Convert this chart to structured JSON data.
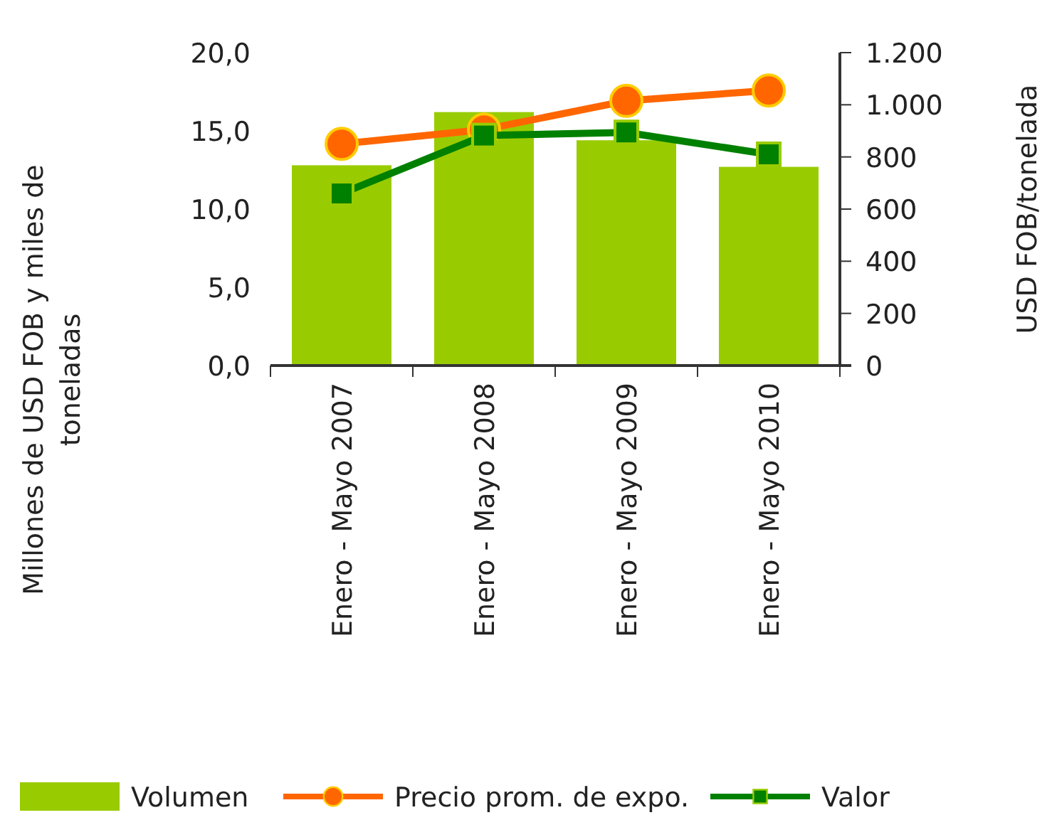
{
  "chart_data": {
    "type": "bar",
    "categories": [
      "Enero - Mayo 2007",
      "Enero - Mayo 2008",
      "Enero - Mayo 2009",
      "Enero - Mayo 2010"
    ],
    "series": [
      {
        "name": "Volumen",
        "color": "#99cc00",
        "values": [
          12.8,
          16.2,
          14.4,
          12.7
        ]
      },
      {
        "name": "Precio prom. de expo.",
        "type": "line",
        "axis": "y2",
        "color": "#ff6600",
        "marker": "circle",
        "values": [
          850,
          905,
          1015,
          1055
        ]
      },
      {
        "name": "Valor",
        "type": "line",
        "color": "#008000",
        "marker": "square",
        "values": [
          11.0,
          14.7,
          14.9,
          13.5
        ]
      }
    ],
    "ylabel": "Millones de USD FOB y miles de toneladas",
    "y2label": "USD FOB/tonelada",
    "ylim": [
      0,
      20
    ],
    "yticks": [
      {
        "value": 0,
        "label": "0,0"
      },
      {
        "value": 5,
        "label": "5,0"
      },
      {
        "value": 10,
        "label": "10,0"
      },
      {
        "value": 15,
        "label": "15,0"
      },
      {
        "value": 20,
        "label": "20,0"
      }
    ],
    "y2lim": [
      0,
      1200
    ],
    "y2ticks": [
      0,
      200,
      400,
      600,
      800,
      {
        "value": 1000,
        "label": "1.000"
      },
      {
        "value": 1200,
        "label": "1.200"
      }
    ],
    "legend": "bottom",
    "grid": false
  }
}
